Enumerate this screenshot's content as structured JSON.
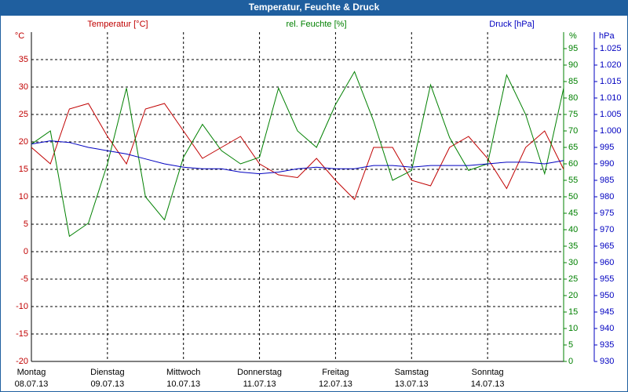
{
  "chart_data": {
    "type": "line",
    "title": "Temperatur, Feuchte & Druck",
    "y_unit": "°C",
    "y2_unit": "%",
    "y3_unit": "hPa",
    "x": [
      0,
      0.25,
      0.5,
      0.75,
      1,
      1.25,
      1.5,
      1.75,
      2,
      2.25,
      2.5,
      2.75,
      3,
      3.25,
      3.5,
      3.75,
      4,
      4.25,
      4.5,
      4.75,
      5,
      5.25,
      5.5,
      5.75,
      6,
      6.25,
      6.5,
      6.75,
      7
    ],
    "xlim": [
      0,
      7
    ],
    "xticks": [
      0,
      1,
      2,
      3,
      4,
      5,
      6,
      7
    ],
    "x_labels": [
      {
        "value": 0,
        "day": "Montag",
        "date": "08.07.13"
      },
      {
        "value": 1,
        "day": "Dienstag",
        "date": "09.07.13"
      },
      {
        "value": 2,
        "day": "Mittwoch",
        "date": "10.07.13"
      },
      {
        "value": 3,
        "day": "Donnerstag",
        "date": "11.07.13"
      },
      {
        "value": 4,
        "day": "Freitag",
        "date": "12.07.13"
      },
      {
        "value": 5,
        "day": "Samstag",
        "date": "13.07.13"
      },
      {
        "value": 6,
        "day": "Sonntag",
        "date": "14.07.13"
      }
    ],
    "ylim": [
      -20,
      40
    ],
    "yticks": [
      -20,
      -15,
      -10,
      -5,
      0,
      5,
      10,
      15,
      20,
      25,
      30,
      35
    ],
    "y2lim": [
      0,
      100
    ],
    "y2ticks": [
      0,
      5,
      10,
      15,
      20,
      25,
      30,
      35,
      40,
      45,
      50,
      55,
      60,
      65,
      70,
      75,
      80,
      85,
      90,
      95
    ],
    "y3lim": [
      930,
      1030
    ],
    "y3ticks": [
      930,
      935,
      940,
      945,
      950,
      955,
      960,
      965,
      970,
      975,
      980,
      985,
      990,
      995,
      {
        "value": 1000,
        "label": "1.000"
      },
      {
        "value": 1005,
        "label": "1.005"
      },
      {
        "value": 1010,
        "label": "1.010"
      },
      {
        "value": 1015,
        "label": "1.015"
      },
      {
        "value": 1020,
        "label": "1.020"
      },
      {
        "value": 1025,
        "label": "1.025"
      }
    ],
    "grid": true,
    "series": [
      {
        "name": "Temperatur [°C]",
        "color": "#c00000",
        "axis": "y",
        "values": [
          19,
          16,
          26,
          27,
          21,
          16,
          26,
          27,
          22,
          17,
          19,
          21,
          16,
          14,
          13.5,
          17,
          13,
          9.5,
          19,
          19,
          13,
          12,
          19,
          21,
          17,
          11.5,
          19,
          22,
          15
        ]
      },
      {
        "name": "rel. Feuchte [%]",
        "color": "#008000",
        "axis": "y2",
        "values": [
          66,
          70,
          38,
          42,
          60,
          83,
          50,
          43,
          62,
          72,
          64,
          60,
          62,
          83,
          70,
          65,
          78,
          88,
          73,
          55,
          58,
          84,
          68,
          58,
          60,
          87,
          75,
          57,
          83
        ]
      },
      {
        "name": "Druck [hPa]",
        "color": "#0000c0",
        "axis": "y3",
        "values": [
          996,
          997,
          996.5,
          995,
          994,
          993,
          991.5,
          990,
          989,
          988.5,
          988.5,
          987.5,
          987,
          987.5,
          988.5,
          989,
          988.5,
          988.5,
          989.5,
          989.5,
          989,
          989.5,
          989.5,
          989.5,
          990,
          990.5,
          990.5,
          990,
          991
        ]
      }
    ]
  }
}
